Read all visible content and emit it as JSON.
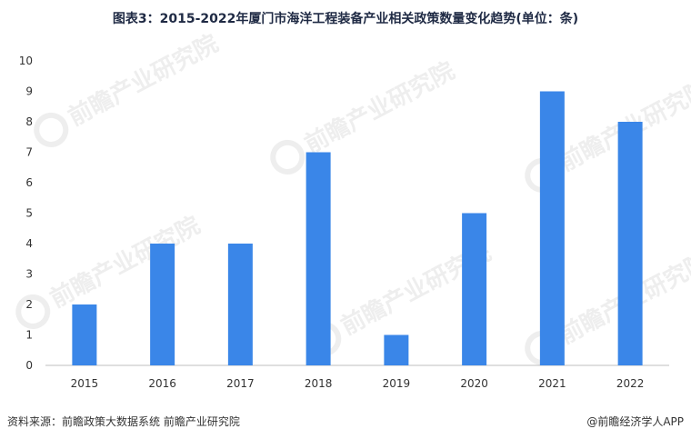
{
  "title": "图表3：2015-2022年厦门市海洋工程装备产业相关政策数量变化趋势(单位：条)",
  "source": "资料来源：前瞻政策大数据系统 前瞻产业研究院",
  "credit": "@前瞻经济学人APP",
  "watermark": "前瞻产业研究院",
  "colors": {
    "bar": "#3a86e8",
    "axis": "#bfbfbf",
    "tick_text": "#333333"
  },
  "chart_data": {
    "type": "bar",
    "categories": [
      "2015",
      "2016",
      "2017",
      "2018",
      "2019",
      "2020",
      "2021",
      "2022"
    ],
    "values": [
      2,
      4,
      4,
      7,
      1,
      5,
      9,
      8
    ],
    "y_ticks": [
      0,
      1,
      2,
      3,
      4,
      5,
      6,
      7,
      8,
      9,
      10
    ],
    "ylim": [
      0,
      10
    ],
    "grid": false,
    "legend": "none"
  }
}
